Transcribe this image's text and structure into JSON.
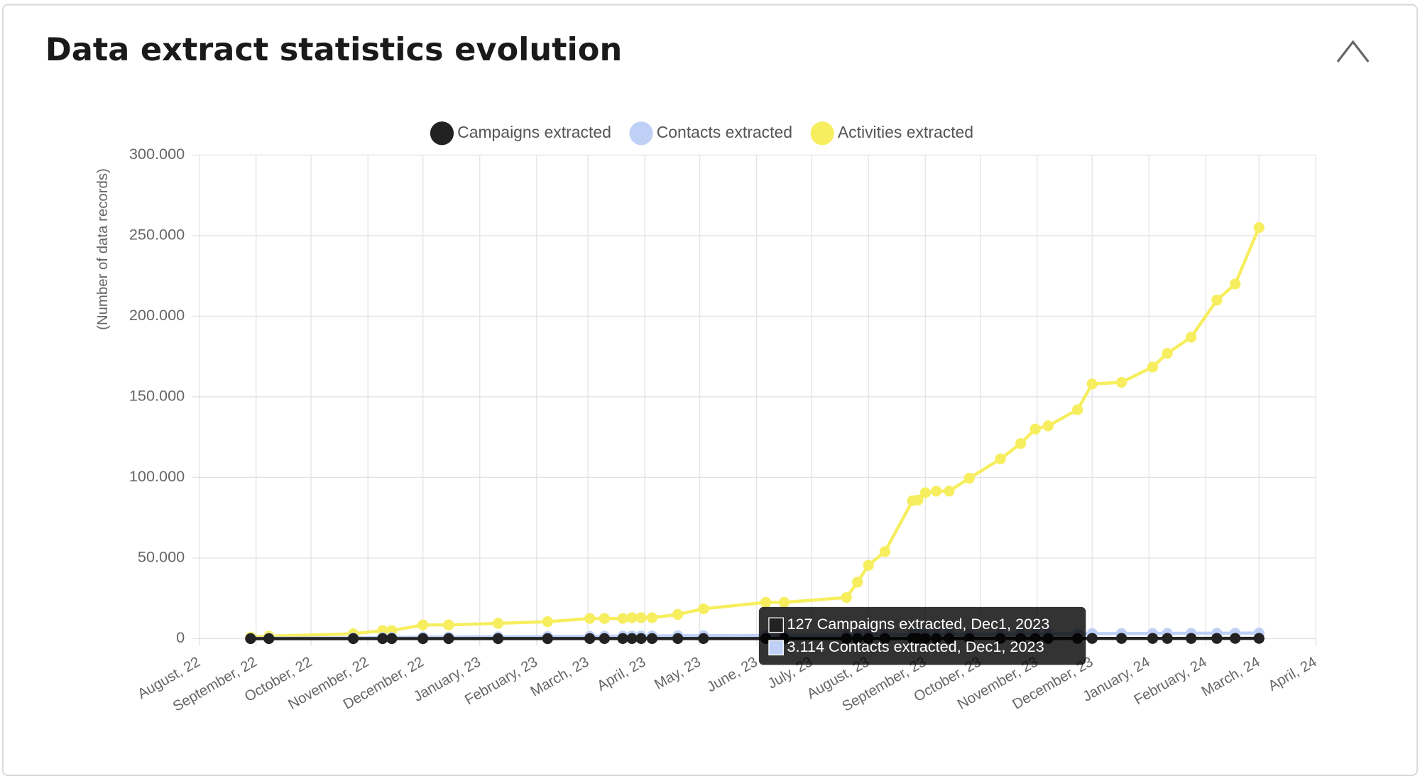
{
  "header": {
    "title": "Data extract statistics evolution"
  },
  "chart_data": {
    "type": "line",
    "ylabel": "(Number of data records)",
    "x": [
      "2022-08-29",
      "2022-09-08",
      "2022-10-24",
      "2022-11-09",
      "2022-11-14",
      "2022-12-01",
      "2022-12-15",
      "2023-01-11",
      "2023-02-07",
      "2023-03-02",
      "2023-03-10",
      "2023-03-20",
      "2023-03-25",
      "2023-03-30",
      "2023-04-05",
      "2023-04-19",
      "2023-05-03",
      "2023-06-06",
      "2023-06-16",
      "2023-07-20",
      "2023-07-26",
      "2023-08-01",
      "2023-08-10",
      "2023-08-25",
      "2023-08-28",
      "2023-09-01",
      "2023-09-07",
      "2023-09-14",
      "2023-09-25",
      "2023-10-12",
      "2023-10-23",
      "2023-10-31",
      "2023-11-07",
      "2023-11-23",
      "2023-12-01",
      "2023-12-17",
      "2024-01-03",
      "2024-01-11",
      "2024-01-24",
      "2024-02-07",
      "2024-02-17",
      "2024-03-01"
    ],
    "series": [
      {
        "name": "Campaigns extracted",
        "color": "#222222",
        "values": [
          5,
          8,
          15,
          20,
          22,
          25,
          28,
          32,
          36,
          40,
          42,
          45,
          47,
          48,
          50,
          54,
          58,
          64,
          66,
          72,
          74,
          76,
          80,
          86,
          87,
          89,
          92,
          95,
          99,
          104,
          108,
          111,
          114,
          120,
          127,
          131,
          136,
          139,
          143,
          148,
          151,
          156
        ]
      },
      {
        "name": "Contacts extracted",
        "color": "#bfd0f7",
        "values": [
          150,
          250,
          500,
          700,
          750,
          900,
          1000,
          1150,
          1300,
          1450,
          1500,
          1550,
          1600,
          1620,
          1650,
          1750,
          1850,
          2000,
          2050,
          2200,
          2250,
          2300,
          2350,
          2450,
          2460,
          2480,
          2550,
          2600,
          2680,
          2800,
          2880,
          2950,
          3000,
          3080,
          3114,
          3150,
          3200,
          3230,
          3280,
          3340,
          3380,
          3450
        ]
      },
      {
        "name": "Activities extracted",
        "color": "#f7ee5f",
        "values": [
          1000,
          1500,
          3000,
          5000,
          5000,
          8500,
          8500,
          9500,
          10500,
          12500,
          12500,
          12500,
          13000,
          13000,
          13000,
          15000,
          18500,
          22500,
          22500,
          25500,
          35000,
          45500,
          54000,
          85500,
          86000,
          90500,
          91500,
          91500,
          99500,
          111500,
          121000,
          130000,
          132000,
          142000,
          158000,
          159000,
          168500,
          177000,
          187000,
          210000,
          220000,
          255000
        ]
      }
    ],
    "xlim": [
      "2022-08-01",
      "2024-04-01"
    ],
    "xticks": [
      {
        "value": "2022-08-01",
        "label": "August, 22"
      },
      {
        "value": "2022-09-01",
        "label": "September, 22"
      },
      {
        "value": "2022-10-01",
        "label": "October, 22"
      },
      {
        "value": "2022-11-01",
        "label": "November, 22"
      },
      {
        "value": "2022-12-01",
        "label": "December, 22"
      },
      {
        "value": "2023-01-01",
        "label": "January, 23"
      },
      {
        "value": "2023-02-01",
        "label": "February, 23"
      },
      {
        "value": "2023-03-01",
        "label": "March, 23"
      },
      {
        "value": "2023-04-01",
        "label": "April, 23"
      },
      {
        "value": "2023-05-01",
        "label": "May, 23"
      },
      {
        "value": "2023-06-01",
        "label": "June, 23"
      },
      {
        "value": "2023-07-01",
        "label": "July, 23"
      },
      {
        "value": "2023-08-01",
        "label": "August, 23"
      },
      {
        "value": "2023-09-01",
        "label": "September, 23"
      },
      {
        "value": "2023-10-01",
        "label": "October, 23"
      },
      {
        "value": "2023-11-01",
        "label": "November, 23"
      },
      {
        "value": "2023-12-01",
        "label": "December, 23"
      },
      {
        "value": "2024-01-01",
        "label": "January, 24"
      },
      {
        "value": "2024-02-01",
        "label": "February, 24"
      },
      {
        "value": "2024-03-01",
        "label": "March, 24"
      },
      {
        "value": "2024-04-01",
        "label": "April, 24"
      }
    ],
    "ylim": [
      0,
      300000
    ],
    "yticks": [
      0,
      {
        "value": 50000,
        "label": "50.000"
      },
      {
        "value": 100000,
        "label": "100.000"
      },
      {
        "value": 150000,
        "label": "150.000"
      },
      {
        "value": 200000,
        "label": "200.000"
      },
      {
        "value": 250000,
        "label": "250.000"
      },
      {
        "value": 300000,
        "label": "300.000"
      }
    ],
    "grid": true,
    "legend": "top",
    "tooltip": {
      "lines": [
        "127 Campaigns extracted, Dec1, 2023",
        "3.114 Contacts extracted, Dec1, 2023"
      ]
    }
  }
}
